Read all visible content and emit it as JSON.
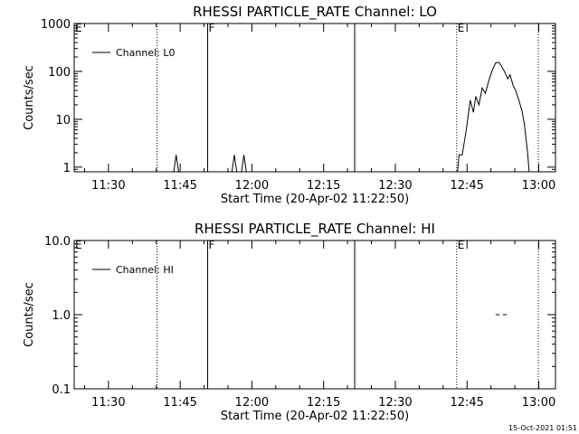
{
  "chart_data": [
    {
      "type": "line",
      "title": "RHESSI PARTICLE_RATE Channel: LO",
      "xlabel": "Start Time (20-Apr-02 11:22:50)",
      "ylabel": "Counts/sec",
      "yscale": "log",
      "ylim": [
        0.8,
        1000
      ],
      "xlim": [
        "11:22:50",
        "13:03:30"
      ],
      "x_ticks": [
        "11:30",
        "11:45",
        "12:00",
        "12:15",
        "12:30",
        "12:45",
        "13:00"
      ],
      "y_ticks": [
        "1",
        "10",
        "100",
        "1000"
      ],
      "legend": {
        "position": "top-left",
        "entries": [
          "Channel: L0"
        ]
      },
      "grid": false,
      "markers": [
        {
          "label": "E",
          "time": "11:22:50",
          "style": "dotted",
          "show_line": false
        },
        {
          "label": "",
          "time": "11:40:10",
          "style": "dotted",
          "show_line": true
        },
        {
          "label": "F",
          "time": "11:50:45",
          "style": "solid",
          "show_line": true
        },
        {
          "label": "",
          "time": "12:21:30",
          "style": "solid",
          "show_line": true
        },
        {
          "label": "E",
          "time": "12:42:50",
          "style": "dotted",
          "show_line": true
        },
        {
          "label": "",
          "time": "12:59:55",
          "style": "dotted",
          "show_line": true
        }
      ],
      "series": [
        {
          "name": "Channel: L0",
          "segments": [
            [
              [
                "11:43:40",
                0.8
              ],
              [
                "11:44:10",
                1.8
              ],
              [
                "11:44:40",
                0.8
              ]
            ],
            [
              [
                "11:55:50",
                0.8
              ],
              [
                "11:56:20",
                1.8
              ],
              [
                "11:56:50",
                0.8
              ]
            ],
            [
              [
                "11:57:50",
                0.8
              ],
              [
                "11:58:20",
                1.8
              ],
              [
                "11:58:50",
                0.8
              ]
            ],
            [
              [
                "12:43:00",
                0.8
              ],
              [
                "12:43:20",
                1.8
              ],
              [
                "12:44:00",
                1.8
              ],
              [
                "12:44:50",
                6
              ],
              [
                "12:45:40",
                25
              ],
              [
                "12:46:20",
                14
              ],
              [
                "12:46:50",
                30
              ],
              [
                "12:47:30",
                20
              ],
              [
                "12:48:10",
                45
              ],
              [
                "12:48:50",
                35
              ],
              [
                "12:49:40",
                70
              ],
              [
                "12:50:20",
                110
              ],
              [
                "12:51:00",
                150
              ],
              [
                "12:51:40",
                155
              ],
              [
                "12:52:10",
                130
              ],
              [
                "12:52:50",
                100
              ],
              [
                "12:53:30",
                70
              ],
              [
                "12:54:00",
                85
              ],
              [
                "12:54:40",
                50
              ],
              [
                "12:55:10",
                40
              ],
              [
                "12:55:50",
                25
              ],
              [
                "12:56:30",
                15
              ],
              [
                "12:57:00",
                8
              ],
              [
                "12:57:40",
                2
              ],
              [
                "12:58:00",
                0.8
              ]
            ]
          ]
        }
      ]
    },
    {
      "type": "line",
      "title": "RHESSI PARTICLE_RATE Channel: HI",
      "xlabel": "Start Time (20-Apr-02 11:22:50)",
      "ylabel": "Counts/sec",
      "yscale": "log",
      "ylim": [
        0.1,
        10
      ],
      "xlim": [
        "11:22:50",
        "13:03:30"
      ],
      "x_ticks": [
        "11:30",
        "11:45",
        "12:00",
        "12:15",
        "12:30",
        "12:45",
        "13:00"
      ],
      "y_ticks": [
        "0.1",
        "1.0",
        "10.0"
      ],
      "legend": {
        "position": "top-left",
        "entries": [
          "Channel: HI"
        ]
      },
      "grid": false,
      "markers": [
        {
          "label": "E",
          "time": "11:22:50",
          "style": "dotted",
          "show_line": false
        },
        {
          "label": "",
          "time": "11:40:10",
          "style": "dotted",
          "show_line": true
        },
        {
          "label": "F",
          "time": "11:50:45",
          "style": "solid",
          "show_line": true
        },
        {
          "label": "",
          "time": "12:21:30",
          "style": "solid",
          "show_line": true
        },
        {
          "label": "E",
          "time": "12:42:50",
          "style": "dotted",
          "show_line": true
        },
        {
          "label": "",
          "time": "12:59:55",
          "style": "dotted",
          "show_line": true
        }
      ],
      "series": [
        {
          "name": "Channel: HI",
          "segments": [
            [
              [
                "12:51:00",
                1.0
              ],
              [
                "12:51:50",
                1.0
              ]
            ],
            [
              [
                "12:52:30",
                1.0
              ],
              [
                "12:53:20",
                1.0
              ]
            ]
          ]
        }
      ]
    }
  ],
  "footer": {
    "timestamp": "15-Oct-2021 01:51"
  }
}
